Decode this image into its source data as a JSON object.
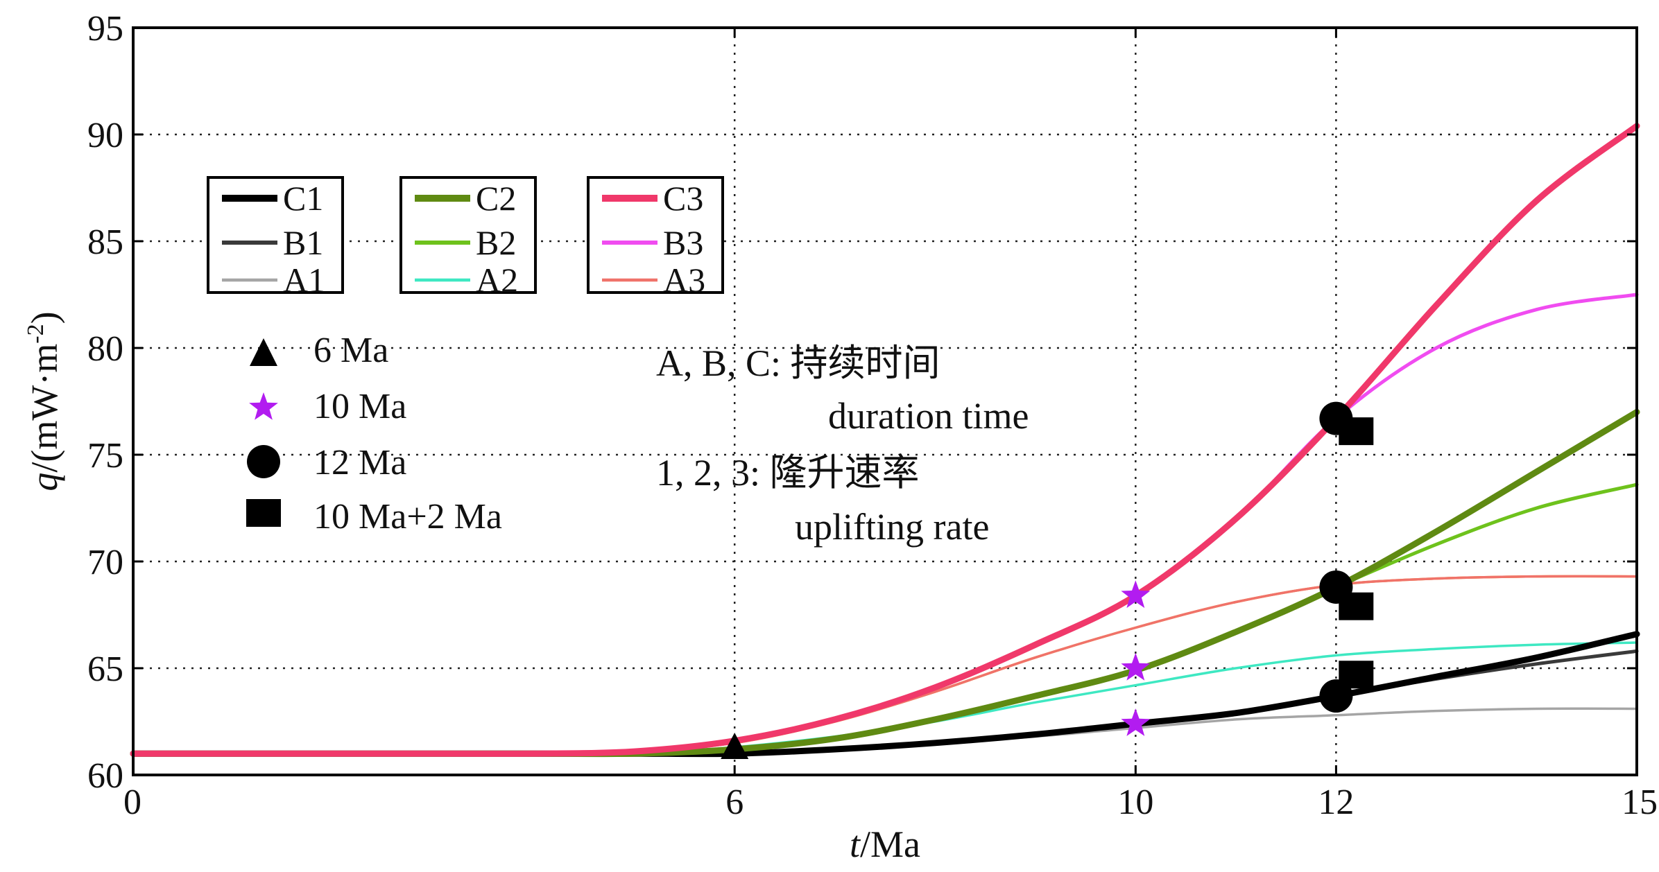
{
  "chart_data": {
    "type": "line",
    "xlabel": {
      "italic": "t",
      "rest": "/Ma"
    },
    "ylabel": {
      "italic": "q",
      "rest": "/(mW·m",
      "sup": "-2",
      "close": ")"
    },
    "xlim": [
      0,
      15
    ],
    "ylim": [
      60,
      95
    ],
    "xticks": [
      0,
      6,
      10,
      12,
      15
    ],
    "yticks": [
      60,
      65,
      70,
      75,
      80,
      85,
      90,
      95
    ],
    "grid": "dotted, at x ticks 6, 10, 12 and every y tick",
    "series": [
      {
        "name": "C1",
        "color": "#000000",
        "weight": "thick",
        "x": [
          0,
          3,
          4,
          5,
          6,
          7,
          8,
          9,
          10,
          11,
          12,
          13,
          14,
          15
        ],
        "y": [
          61,
          61,
          61,
          61,
          61,
          61.2,
          61.5,
          61.9,
          62.4,
          62.9,
          63.7,
          64.6,
          65.5,
          66.6
        ]
      },
      {
        "name": "B1",
        "color": "#3a3a3a",
        "weight": "medium",
        "x": [
          0,
          3,
          4,
          5,
          6,
          7,
          8,
          9,
          10,
          11,
          12,
          13,
          14,
          15
        ],
        "y": [
          61,
          61,
          61,
          61,
          61,
          61.2,
          61.5,
          61.9,
          62.4,
          62.9,
          63.7,
          64.5,
          65.2,
          65.8
        ]
      },
      {
        "name": "A1",
        "color": "#a5a5a5",
        "weight": "thin",
        "x": [
          0,
          3,
          4,
          5,
          6,
          7,
          8,
          9,
          10,
          11,
          12,
          13,
          14,
          15
        ],
        "y": [
          61,
          61,
          61,
          61,
          61,
          61.2,
          61.5,
          61.8,
          62.2,
          62.6,
          62.8,
          63.0,
          63.1,
          63.1
        ]
      },
      {
        "name": "C2",
        "color": "#5f8a12",
        "weight": "thick",
        "x": [
          0,
          3,
          4,
          5,
          6,
          7,
          8,
          9,
          10,
          11,
          12,
          13,
          14,
          15
        ],
        "y": [
          61,
          61,
          61,
          61,
          61.2,
          61.7,
          62.6,
          63.7,
          64.9,
          66.7,
          68.8,
          71.4,
          74.2,
          77.0
        ]
      },
      {
        "name": "B2",
        "color": "#6ec21c",
        "weight": "medium",
        "x": [
          0,
          3,
          4,
          5,
          6,
          7,
          8,
          9,
          10,
          11,
          12,
          13,
          14,
          15
        ],
        "y": [
          61,
          61,
          61,
          61,
          61.2,
          61.7,
          62.6,
          63.7,
          64.9,
          66.7,
          68.8,
          70.8,
          72.5,
          73.6
        ]
      },
      {
        "name": "A2",
        "color": "#3ee8c2",
        "weight": "thin",
        "x": [
          0,
          3,
          4,
          5,
          6,
          7,
          8,
          9,
          10,
          11,
          12,
          13,
          14,
          15
        ],
        "y": [
          61,
          61,
          61,
          61,
          61.3,
          61.8,
          62.5,
          63.4,
          64.2,
          65.0,
          65.6,
          65.9,
          66.1,
          66.2
        ]
      },
      {
        "name": "C3",
        "color": "#f0386a",
        "weight": "thick",
        "x": [
          0,
          3,
          4,
          5,
          6,
          7,
          8,
          9,
          10,
          11,
          12,
          13,
          14,
          15
        ],
        "y": [
          61,
          61,
          61,
          61.1,
          61.6,
          62.6,
          64.1,
          66.1,
          68.4,
          72.0,
          76.7,
          82.0,
          86.9,
          90.4
        ]
      },
      {
        "name": "B3",
        "color": "#f04cf0",
        "weight": "medium",
        "x": [
          0,
          3,
          4,
          5,
          6,
          7,
          8,
          9,
          10,
          11,
          12,
          13,
          14,
          15
        ],
        "y": [
          61,
          61,
          61,
          61.1,
          61.6,
          62.6,
          64.1,
          66.1,
          68.4,
          72.0,
          76.7,
          80.0,
          81.8,
          82.5
        ]
      },
      {
        "name": "A3",
        "color": "#f0726a",
        "weight": "thin",
        "x": [
          0,
          3,
          4,
          5,
          6,
          7,
          8,
          9,
          10,
          11,
          12,
          13,
          14,
          15
        ],
        "y": [
          61,
          61,
          61,
          61.1,
          61.5,
          62.5,
          63.9,
          65.5,
          66.9,
          68.1,
          68.9,
          69.2,
          69.3,
          69.3
        ]
      },
      {
        "name": "",
        "color": "#f0a020",
        "weight": "thin",
        "x": [
          0,
          3,
          4,
          5,
          6,
          7,
          8,
          9,
          10,
          11,
          12,
          13,
          14,
          15
        ],
        "y": [
          61,
          61,
          61,
          61.1,
          61.5,
          62.5,
          63.9,
          65.5,
          66.9,
          68.1,
          68.9,
          69.2,
          69.3,
          69.3
        ]
      }
    ],
    "markers": [
      {
        "label": "6 Ma",
        "shape": "triangle",
        "color": "#000000",
        "points": [
          {
            "x": 6,
            "y": 61.2
          }
        ]
      },
      {
        "label": "10 Ma",
        "shape": "star",
        "color": "#b21cf0",
        "points": [
          {
            "x": 10,
            "y": 68.4
          },
          {
            "x": 10,
            "y": 65.0
          },
          {
            "x": 10,
            "y": 62.4
          }
        ]
      },
      {
        "label": "12 Ma",
        "shape": "circle",
        "color": "#000000",
        "points": [
          {
            "x": 12,
            "y": 76.7
          },
          {
            "x": 12,
            "y": 68.8
          },
          {
            "x": 12,
            "y": 63.7
          }
        ]
      },
      {
        "label": "10 Ma+2 Ma",
        "shape": "square",
        "color": "#000000",
        "points": [
          {
            "x": 12.2,
            "y": 76.1
          },
          {
            "x": 12.2,
            "y": 67.9
          },
          {
            "x": 12.2,
            "y": 64.7
          }
        ]
      }
    ],
    "legend_groups": [
      [
        "C1",
        "B1",
        "A1"
      ],
      [
        "C2",
        "B2",
        "A2"
      ],
      [
        "C3",
        "B3",
        "A3"
      ]
    ],
    "annotations": [
      "A, B, C:  持续时间",
      "duration time",
      "1, 2, 3: 隆升速率",
      "uplifting rate"
    ]
  }
}
